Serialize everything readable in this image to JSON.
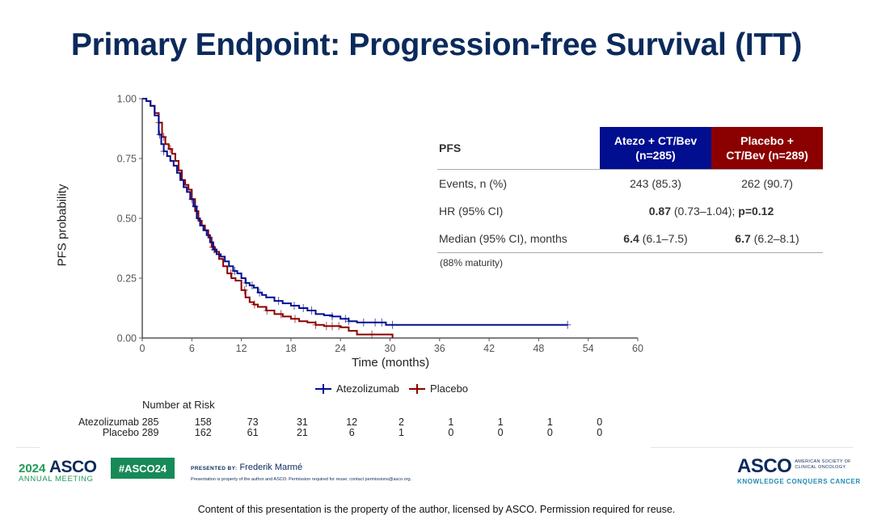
{
  "title": "Primary Endpoint: Progression-free Survival (ITT)",
  "colors": {
    "atezo": "#000e8f",
    "placebo": "#8b0000",
    "title": "#0b2a5b",
    "asco_green": "#178a58"
  },
  "chart_data": {
    "type": "line",
    "subtype": "kaplan-meier",
    "xlabel": "Time (months)",
    "ylabel": "PFS probability",
    "xlim": [
      0,
      60
    ],
    "ylim": [
      0,
      1
    ],
    "xticks": [
      0,
      6,
      12,
      18,
      24,
      30,
      36,
      42,
      48,
      54,
      60
    ],
    "xtick_labels": [
      "0",
      "6",
      "12",
      "18",
      "24",
      "30",
      "36",
      "42",
      "48",
      "54",
      "60"
    ],
    "yticks": [
      0,
      0.25,
      0.5,
      0.75,
      1.0
    ],
    "ytick_labels": [
      "0.00",
      "0.25",
      "0.50",
      "0.75",
      "1.00"
    ],
    "grid": false,
    "legend": {
      "position": "bottom",
      "entries": [
        "Atezolizumab",
        "Placebo"
      ]
    },
    "series": [
      {
        "name": "Atezolizumab",
        "color": "#000e8f",
        "x": [
          0,
          0.5,
          1.0,
          1.5,
          2.0,
          2.3,
          2.6,
          3.0,
          3.4,
          3.8,
          4.2,
          4.6,
          5.0,
          5.4,
          5.8,
          6.2,
          6.6,
          7.0,
          7.4,
          7.8,
          8.2,
          8.6,
          9.0,
          9.5,
          10.0,
          10.5,
          11.0,
          11.5,
          12.0,
          12.5,
          13.0,
          13.5,
          14.0,
          14.5,
          15.0,
          16.0,
          17.0,
          18.0,
          19.0,
          20.0,
          21.0,
          22.0,
          23.0,
          24.0,
          25.0,
          26.0,
          29.5,
          51.5
        ],
        "y": [
          1.0,
          0.99,
          0.97,
          0.93,
          0.85,
          0.81,
          0.78,
          0.76,
          0.74,
          0.72,
          0.69,
          0.66,
          0.63,
          0.61,
          0.58,
          0.55,
          0.5,
          0.47,
          0.45,
          0.43,
          0.4,
          0.37,
          0.35,
          0.34,
          0.32,
          0.3,
          0.28,
          0.27,
          0.25,
          0.23,
          0.22,
          0.21,
          0.19,
          0.18,
          0.17,
          0.155,
          0.145,
          0.135,
          0.125,
          0.115,
          0.1,
          0.095,
          0.09,
          0.08,
          0.07,
          0.065,
          0.055,
          0.055
        ],
        "censor_x": [
          2.1,
          2.6,
          6.4,
          8.7,
          11.2,
          12.6,
          13.3,
          14.2,
          16.5,
          18.4,
          19.5,
          20.5,
          23.0,
          24.6,
          25.0,
          26.8,
          28.2,
          29.0,
          30.3,
          51.5
        ]
      },
      {
        "name": "Placebo",
        "color": "#8b0000",
        "x": [
          0,
          0.5,
          1.0,
          1.5,
          2.0,
          2.4,
          2.8,
          3.2,
          3.6,
          4.0,
          4.4,
          4.8,
          5.2,
          5.6,
          6.0,
          6.4,
          6.8,
          7.2,
          7.6,
          8.0,
          8.4,
          8.8,
          9.3,
          9.8,
          10.3,
          10.8,
          11.3,
          12.0,
          12.5,
          13.0,
          13.5,
          14.0,
          15.0,
          16.0,
          17.0,
          18.0,
          19.0,
          20.0,
          21.0,
          22.0,
          24.0,
          25.0,
          26.0,
          30.3
        ],
        "y": [
          1.0,
          0.99,
          0.97,
          0.94,
          0.9,
          0.84,
          0.81,
          0.79,
          0.77,
          0.74,
          0.7,
          0.66,
          0.64,
          0.62,
          0.58,
          0.53,
          0.49,
          0.47,
          0.45,
          0.42,
          0.38,
          0.36,
          0.33,
          0.3,
          0.27,
          0.25,
          0.24,
          0.2,
          0.17,
          0.15,
          0.14,
          0.13,
          0.115,
          0.1,
          0.09,
          0.08,
          0.07,
          0.065,
          0.055,
          0.05,
          0.045,
          0.03,
          0.015,
          0.0
        ],
        "censor_x": [
          2.0,
          2.6,
          3.4,
          6.0,
          8.5,
          10.7,
          12.4,
          13.6,
          15.1,
          16.8,
          18.5,
          21.0,
          22.3,
          23.0,
          23.8,
          27.8
        ]
      }
    ]
  },
  "table": {
    "header": {
      "label": "PFS",
      "col1": "Atezo + CT/Bev (n=285)",
      "col1_line1": "Atezo + CT/Bev",
      "col1_line2": "(n=285)",
      "col2_line1": "Placebo +",
      "col2_line2": "CT/Bev (n=289)"
    },
    "rows": [
      {
        "label": "Events, n (%)",
        "atezo": "243 (85.3)",
        "placebo": "262 (90.7)"
      },
      {
        "label": "HR (95% CI)",
        "hr_bold": "0.87",
        "hr_ci": " (0.73–1.04); ",
        "p_bold": "p=0.12"
      },
      {
        "label": "Median (95% CI), months",
        "atezo_bold": "6.4",
        "atezo_ci": " (6.1–7.5)",
        "placebo_bold": "6.7",
        "placebo_ci": " (6.2–8.1)"
      }
    ],
    "footnote": "(88% maturity)"
  },
  "legend": {
    "atezo": "Atezolizumab",
    "placebo": "Placebo"
  },
  "risk": {
    "title": "Number at Risk",
    "times": [
      0,
      6,
      12,
      18,
      24,
      30,
      36,
      42,
      48,
      54
    ],
    "rows": [
      {
        "name": "Atezolizumab",
        "values": [
          "285",
          "158",
          "73",
          "31",
          "12",
          "2",
          "1",
          "1",
          "1",
          "0"
        ]
      },
      {
        "name": "Placebo",
        "values": [
          "289",
          "162",
          "61",
          "21",
          "6",
          "1",
          "0",
          "0",
          "0",
          "0"
        ]
      }
    ]
  },
  "footer": {
    "year": "2024",
    "asco": "ASCO",
    "annual_meeting": "ANNUAL MEETING",
    "hashtag": "#ASCO24",
    "presented_by": "PRESENTED BY:",
    "presenter": "Frederik Marmé",
    "property_note": "Presentation is property of the author and ASCO. Permission required for reuse; contact permissions@asco.org.",
    "society_line1": "AMERICAN SOCIETY OF",
    "society_line2": "CLINICAL ONCOLOGY",
    "tagline": "KNOWLEDGE CONQUERS CANCER",
    "bottom_note": "Content of this presentation is the property of the author, licensed by ASCO. Permission required for reuse."
  }
}
